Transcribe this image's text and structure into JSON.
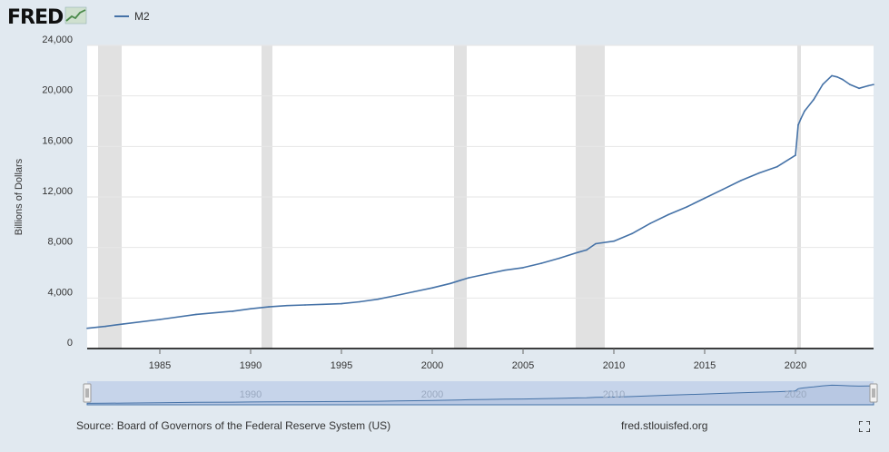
{
  "brand": {
    "logo_text": "FRED",
    "icon": "chart-line-icon"
  },
  "legend": {
    "series_name": "M2",
    "color": "#4572a7"
  },
  "source": "Source: Board of Governors of the Federal Reserve System (US)",
  "site": "fred.stlouisfed.org",
  "fullscreen_icon": "fullscreen-icon",
  "colors": {
    "line": "#4572a7",
    "background": "#e1e9f0",
    "plot": "#ffffff",
    "recession": "#e1e1e1",
    "navigator_fill": "#b8c8e3"
  },
  "chart_data": {
    "type": "line",
    "title": "",
    "ylabel": "Billions of Dollars",
    "xlabel": "",
    "xlim": [
      1981.0,
      2024.3
    ],
    "ylim": [
      0,
      24000
    ],
    "yticks": [
      0,
      4000,
      8000,
      12000,
      16000,
      20000,
      24000
    ],
    "ytick_labels": [
      "0",
      "4,000",
      "8,000",
      "12,000",
      "16,000",
      "20,000",
      "24,000"
    ],
    "xticks": [
      1985,
      1990,
      1995,
      2000,
      2005,
      2010,
      2015,
      2020
    ],
    "xtick_labels": [
      "1985",
      "1990",
      "1995",
      "2000",
      "2005",
      "2010",
      "2015",
      "2020"
    ],
    "grid": true,
    "recessions": [
      [
        1981.6,
        1982.9
      ],
      [
        1990.6,
        1991.2
      ],
      [
        2001.2,
        2001.9
      ],
      [
        2007.9,
        2009.5
      ],
      [
        2020.1,
        2020.3
      ]
    ],
    "navigator": {
      "range": [
        1981.0,
        2024.3
      ],
      "tick_labels": [
        "1990",
        "2000",
        "2010",
        "2020"
      ]
    },
    "series": [
      {
        "name": "M2",
        "x": [
          1981.0,
          1982.0,
          1983.0,
          1985.0,
          1987.0,
          1989.0,
          1990.0,
          1991.0,
          1992.0,
          1993.0,
          1994.0,
          1995.0,
          1996.0,
          1997.0,
          1998.0,
          1999.0,
          2000.0,
          2001.0,
          2002.0,
          2003.0,
          2004.0,
          2005.0,
          2006.0,
          2007.0,
          2008.0,
          2008.5,
          2009.0,
          2010.0,
          2011.0,
          2012.0,
          2013.0,
          2014.0,
          2015.0,
          2016.0,
          2017.0,
          2018.0,
          2019.0,
          2020.0,
          2020.15,
          2020.3,
          2020.5,
          2021.0,
          2021.5,
          2022.0,
          2022.3,
          2022.6,
          2023.0,
          2023.5,
          2024.0,
          2024.3
        ],
        "values": [
          1600,
          1750,
          1950,
          2300,
          2700,
          2950,
          3150,
          3300,
          3400,
          3450,
          3500,
          3550,
          3700,
          3900,
          4200,
          4500,
          4800,
          5150,
          5600,
          5900,
          6200,
          6400,
          6750,
          7150,
          7600,
          7800,
          8300,
          8500,
          9100,
          9900,
          10600,
          11200,
          11900,
          12600,
          13300,
          13900,
          14400,
          15300,
          17700,
          18200,
          18800,
          19700,
          20900,
          21600,
          21500,
          21300,
          20900,
          20600,
          20800,
          20900
        ]
      }
    ]
  }
}
